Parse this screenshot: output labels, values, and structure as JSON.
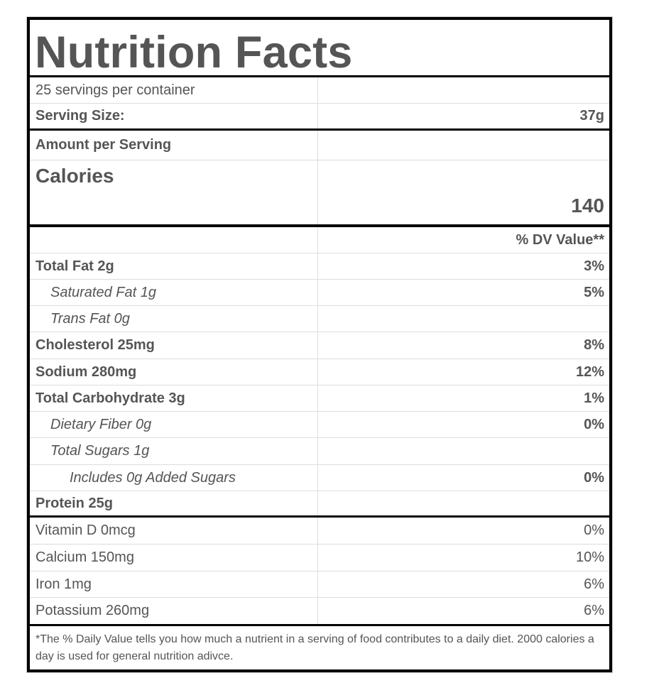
{
  "label": {
    "title": "Nutrition Facts",
    "servings_per_container": "25 servings per container",
    "serving_size_label": "Serving Size:",
    "serving_size_value": "37g",
    "amount_per_serving": "Amount per Serving",
    "calories_label": "Calories",
    "calories_value": "140",
    "dv_header": "% DV Value**",
    "nutrients": [
      {
        "label": "Total Fat 2g",
        "dv": "3%"
      },
      {
        "label": "Saturated Fat 1g",
        "dv": "5%"
      },
      {
        "label": "Trans Fat 0g",
        "dv": ""
      },
      {
        "label": "Cholesterol 25mg",
        "dv": "8%"
      },
      {
        "label": "Sodium 280mg",
        "dv": "12%"
      },
      {
        "label": "Total Carbohydrate 3g",
        "dv": "1%"
      },
      {
        "label": "Dietary Fiber 0g",
        "dv": "0%"
      },
      {
        "label": "Total Sugars 1g",
        "dv": ""
      },
      {
        "label": "Includes 0g Added Sugars",
        "dv": "0%"
      },
      {
        "label": "Protein 25g",
        "dv": ""
      }
    ],
    "vitamins": [
      {
        "label": "Vitamin D 0mcg",
        "dv": "0%"
      },
      {
        "label": "Calcium 150mg",
        "dv": "10%"
      },
      {
        "label": "Iron 1mg",
        "dv": "6%"
      },
      {
        "label": "Potassium 260mg",
        "dv": "6%"
      }
    ],
    "footnote": "*The % Daily Value tells you how much a nutrient in a serving of food contributes to a daily diet. 2000 calories a day is used for general nutrition adivce."
  }
}
